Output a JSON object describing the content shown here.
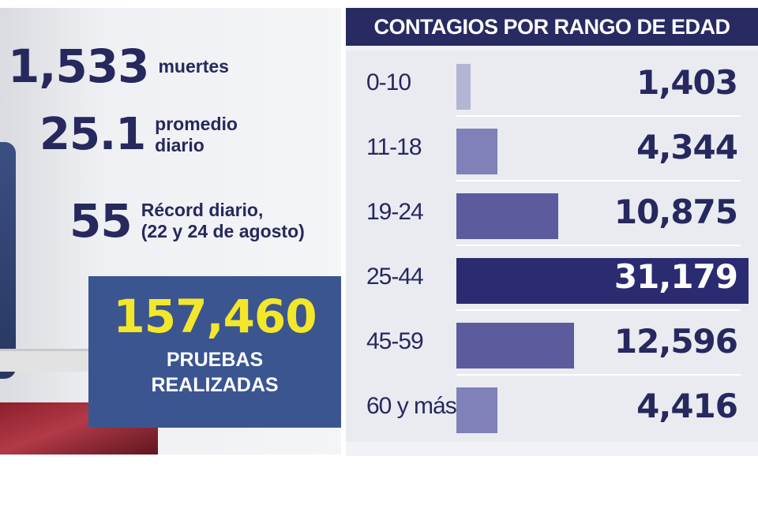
{
  "stats": {
    "muertes": {
      "value": "1,533",
      "label": "muertes"
    },
    "promedio": {
      "value": "25.1",
      "label_line1": "promedio",
      "label_line2": "diario"
    },
    "record": {
      "value": "55",
      "label_line1": "Récord diario,",
      "label_line2": "(22 y 24 de agosto)"
    }
  },
  "tests": {
    "value": "157,460",
    "label_line1": "PRUEBAS",
    "label_line2": "REALIZADAS"
  },
  "colors": {
    "navy": "#282a62",
    "bar_light": "#b3b5d3",
    "bar_mid": "#7f81b8",
    "bar_dark": "#5b5b9e",
    "bar_max": "#2b2b72",
    "tests_bg": "#3b5591",
    "tests_value": "#f3e72a"
  },
  "chart_data": {
    "type": "bar",
    "title": "CONTAGIOS POR RANGO DE EDAD",
    "categories": [
      "0-10",
      "11-18",
      "19-24",
      "25-44",
      "45-59",
      "60 y más"
    ],
    "values": [
      1403,
      4344,
      10875,
      31179,
      12596,
      4416
    ],
    "value_labels": [
      "1,403",
      "4,344",
      "10,875",
      "31,179",
      "12,596",
      "4,416"
    ],
    "xlim": [
      0,
      31179
    ]
  }
}
